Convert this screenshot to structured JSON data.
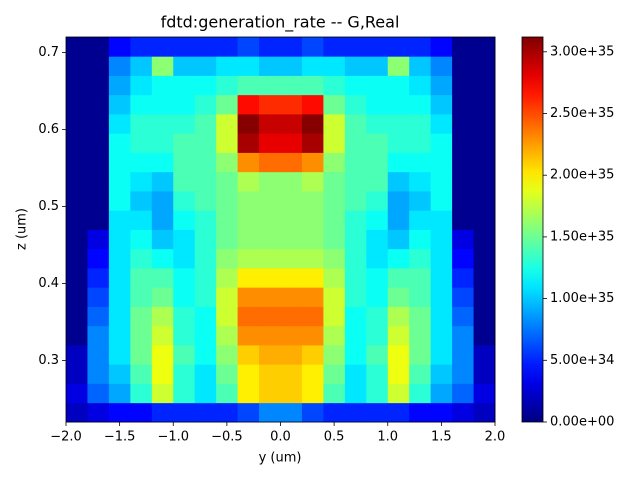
{
  "chart_data": {
    "type": "heatmap",
    "title": "fdtd:generation_rate -- G,Real",
    "xlabel": "y (um)",
    "ylabel": "z (um)",
    "cmap": "jet",
    "xlim": [
      -2,
      2
    ],
    "ylim": [
      0.22,
      0.72
    ],
    "clim": [
      0,
      3.12e+35
    ],
    "xticks": [
      {
        "value": -2,
        "label": "−2.0"
      },
      {
        "value": -1.5,
        "label": "−1.5"
      },
      {
        "value": -1,
        "label": "−1.0"
      },
      {
        "value": -0.5,
        "label": "−0.5"
      },
      {
        "value": 0,
        "label": "0.0"
      },
      {
        "value": 0.5,
        "label": "0.5"
      },
      {
        "value": 1,
        "label": "1.0"
      },
      {
        "value": 1.5,
        "label": "1.5"
      },
      {
        "value": 2,
        "label": "2.0"
      }
    ],
    "yticks": [
      0.3,
      0.4,
      0.5,
      0.6,
      0.7
    ],
    "cticks": [
      {
        "value": 0,
        "label": "0.00e+00"
      },
      {
        "value": 5e+34,
        "label": "5.00e+34"
      },
      {
        "value": 1e+35,
        "label": "1.00e+35"
      },
      {
        "value": 1.5e+35,
        "label": "1.50e+35"
      },
      {
        "value": 2e+35,
        "label": "2.00e+35"
      },
      {
        "value": 2.5e+35,
        "label": "2.50e+35"
      },
      {
        "value": 3e+35,
        "label": "3.00e+35"
      }
    ],
    "x": [
      -1.9,
      -1.7,
      -1.5,
      -1.3,
      -1.1,
      -0.9,
      -0.7,
      -0.5,
      -0.3,
      -0.1,
      0.1,
      0.3,
      0.5,
      0.7,
      0.9,
      1.1,
      1.3,
      1.5,
      1.7,
      1.9
    ],
    "y": [
      0.2325,
      0.2575,
      0.2825,
      0.3075,
      0.3325,
      0.3575,
      0.3825,
      0.4075,
      0.4325,
      0.4575,
      0.4825,
      0.5075,
      0.5325,
      0.5575,
      0.5825,
      0.6075,
      0.6325,
      0.6575,
      0.6825,
      0.7075
    ],
    "values": [
      [
        2e+34,
        3e+34,
        4e+34,
        4e+34,
        5e+34,
        5e+34,
        5e+34,
        5e+34,
        6e+34,
        8e+34,
        8e+34,
        6e+34,
        5e+34,
        5e+34,
        5e+34,
        5e+34,
        4e+34,
        4e+34,
        3e+34,
        2e+34
      ],
      [
        3e+34,
        7e+34,
        9e+34,
        1.3e+35,
        1.8e+35,
        1.3e+35,
        1.1e+35,
        1.4e+35,
        2e+35,
        2.1e+35,
        2.1e+35,
        2e+35,
        1.4e+35,
        1.1e+35,
        1.3e+35,
        1.8e+35,
        1.3e+35,
        9e+34,
        7e+34,
        3e+34
      ],
      [
        2e+34,
        8e+34,
        1e+35,
        1.4e+35,
        1.9e+35,
        1.3e+35,
        1.1e+35,
        1.5e+35,
        2e+35,
        2.1e+35,
        2.1e+35,
        2e+35,
        1.5e+35,
        1.1e+35,
        1.3e+35,
        1.9e+35,
        1.4e+35,
        1e+35,
        8e+34,
        2e+34
      ],
      [
        2e+34,
        8e+34,
        1.1e+35,
        1.5e+35,
        1.9e+35,
        1.4e+35,
        1.2e+35,
        1.6e+35,
        2.1e+35,
        2.2e+35,
        2.2e+35,
        2.1e+35,
        1.6e+35,
        1.2e+35,
        1.4e+35,
        1.9e+35,
        1.5e+35,
        1.1e+35,
        8e+34,
        2e+34
      ],
      [
        5e+33,
        8e+34,
        1.1e+35,
        1.5e+35,
        1.8e+35,
        1.3e+35,
        1.2e+35,
        1.7e+35,
        2.3e+35,
        2.3e+35,
        2.3e+35,
        2.3e+35,
        1.7e+35,
        1.2e+35,
        1.3e+35,
        1.8e+35,
        1.5e+35,
        1.1e+35,
        8e+34,
        5e+33
      ],
      [
        5e+33,
        7e+34,
        1.1e+35,
        1.5e+35,
        1.7e+35,
        1.3e+35,
        1.2e+35,
        1.8e+35,
        2.4e+35,
        2.4e+35,
        2.4e+35,
        2.4e+35,
        1.8e+35,
        1.2e+35,
        1.3e+35,
        1.7e+35,
        1.5e+35,
        1.1e+35,
        7e+34,
        5e+33
      ],
      [
        5e+33,
        6e+34,
        1.1e+35,
        1.4e+35,
        1.5e+35,
        1.2e+35,
        1.3e+35,
        1.8e+35,
        2.3e+35,
        2.3e+35,
        2.3e+35,
        2.3e+35,
        1.8e+35,
        1.3e+35,
        1.2e+35,
        1.5e+35,
        1.4e+35,
        1.1e+35,
        6e+34,
        5e+33
      ],
      [
        5e+33,
        5e+34,
        1.1e+35,
        1.4e+35,
        1.4e+35,
        1.2e+35,
        1.3e+35,
        1.7e+35,
        2e+35,
        2e+35,
        2e+35,
        2e+35,
        1.7e+35,
        1.3e+35,
        1.2e+35,
        1.4e+35,
        1.4e+35,
        1.1e+35,
        5e+34,
        5e+33
      ],
      [
        5e+33,
        4e+34,
        1.1e+35,
        1.3e+35,
        1.2e+35,
        1.1e+35,
        1.3e+35,
        1.6e+35,
        1.7e+35,
        1.7e+35,
        1.7e+35,
        1.7e+35,
        1.6e+35,
        1.3e+35,
        1.1e+35,
        1.2e+35,
        1.3e+35,
        1.1e+35,
        4e+34,
        5e+33
      ],
      [
        5e+33,
        3e+34,
        1.1e+35,
        1.2e+35,
        1e+35,
        1.1e+35,
        1.3e+35,
        1.5e+35,
        1.6e+35,
        1.6e+35,
        1.6e+35,
        1.6e+35,
        1.5e+35,
        1.3e+35,
        1.1e+35,
        1e+35,
        1.2e+35,
        1.1e+35,
        3e+34,
        5e+33
      ],
      [
        5e+33,
        5e+33,
        1.1e+35,
        1.1e+35,
        9e+34,
        1.2e+35,
        1.3e+35,
        1.5e+35,
        1.6e+35,
        1.6e+35,
        1.6e+35,
        1.6e+35,
        1.5e+35,
        1.3e+35,
        1.2e+35,
        9e+34,
        1.1e+35,
        1.1e+35,
        5e+33,
        5e+33
      ],
      [
        5e+33,
        5e+33,
        1.2e+35,
        1e+35,
        9e+34,
        1.3e+35,
        1.4e+35,
        1.5e+35,
        1.6e+35,
        1.6e+35,
        1.6e+35,
        1.6e+35,
        1.5e+35,
        1.4e+35,
        1.3e+35,
        9e+34,
        1e+35,
        1.2e+35,
        5e+33,
        5e+33
      ],
      [
        5e+33,
        5e+33,
        1.2e+35,
        1.1e+35,
        1e+35,
        1.4e+35,
        1.4e+35,
        1.5e+35,
        1.7e+35,
        1.6e+35,
        1.6e+35,
        1.7e+35,
        1.5e+35,
        1.4e+35,
        1.4e+35,
        1e+35,
        1.1e+35,
        1.2e+35,
        5e+33,
        5e+33
      ],
      [
        5e+33,
        5e+33,
        1.2e+35,
        1.2e+35,
        1.2e+35,
        1.4e+35,
        1.4e+35,
        1.6e+35,
        2.3e+35,
        2.4e+35,
        2.4e+35,
        2.3e+35,
        1.6e+35,
        1.4e+35,
        1.4e+35,
        1.2e+35,
        1.2e+35,
        1.2e+35,
        5e+33,
        5e+33
      ],
      [
        5e+33,
        5e+33,
        1.2e+35,
        1.3e+35,
        1.3e+35,
        1.4e+35,
        1.4e+35,
        1.8e+35,
        3e+35,
        2.8e+35,
        2.8e+35,
        3e+35,
        1.8e+35,
        1.4e+35,
        1.4e+35,
        1.3e+35,
        1.3e+35,
        1.2e+35,
        5e+33,
        5e+33
      ],
      [
        5e+33,
        5e+33,
        1.1e+35,
        1.3e+35,
        1.3e+35,
        1.3e+35,
        1.4e+35,
        1.8e+35,
        3.1e+35,
        2.9e+35,
        2.9e+35,
        3.1e+35,
        1.8e+35,
        1.4e+35,
        1.3e+35,
        1.3e+35,
        1.3e+35,
        1.1e+35,
        5e+33,
        5e+33
      ],
      [
        5e+33,
        5e+33,
        1e+35,
        1.2e+35,
        1.2e+35,
        1.2e+35,
        1.3e+35,
        1.5e+35,
        2.7e+35,
        2.6e+35,
        2.6e+35,
        2.7e+35,
        1.5e+35,
        1.3e+35,
        1.2e+35,
        1.2e+35,
        1.2e+35,
        1e+35,
        5e+33,
        5e+33
      ],
      [
        5e+33,
        5e+33,
        9e+34,
        1.1e+35,
        1.2e+35,
        1.2e+35,
        1.2e+35,
        1.3e+35,
        1.4e+35,
        1.4e+35,
        1.4e+35,
        1.4e+35,
        1.3e+35,
        1.2e+35,
        1.2e+35,
        1.2e+35,
        1.1e+35,
        9e+34,
        5e+33,
        5e+33
      ],
      [
        5e+33,
        5e+33,
        8e+34,
        1e+35,
        1.6e+35,
        1e+35,
        1e+35,
        1.1e+35,
        1.1e+35,
        1e+35,
        1e+35,
        1.1e+35,
        1.1e+35,
        1e+35,
        1e+35,
        1.6e+35,
        1e+35,
        8e+34,
        5e+33,
        5e+33
      ],
      [
        5e+33,
        5e+33,
        4e+34,
        5e+34,
        5e+34,
        5e+34,
        5e+34,
        5e+34,
        6e+34,
        5e+34,
        5e+34,
        6e+34,
        5e+34,
        5e+34,
        5e+34,
        5e+34,
        5e+34,
        4e+34,
        5e+33,
        5e+33
      ]
    ]
  }
}
